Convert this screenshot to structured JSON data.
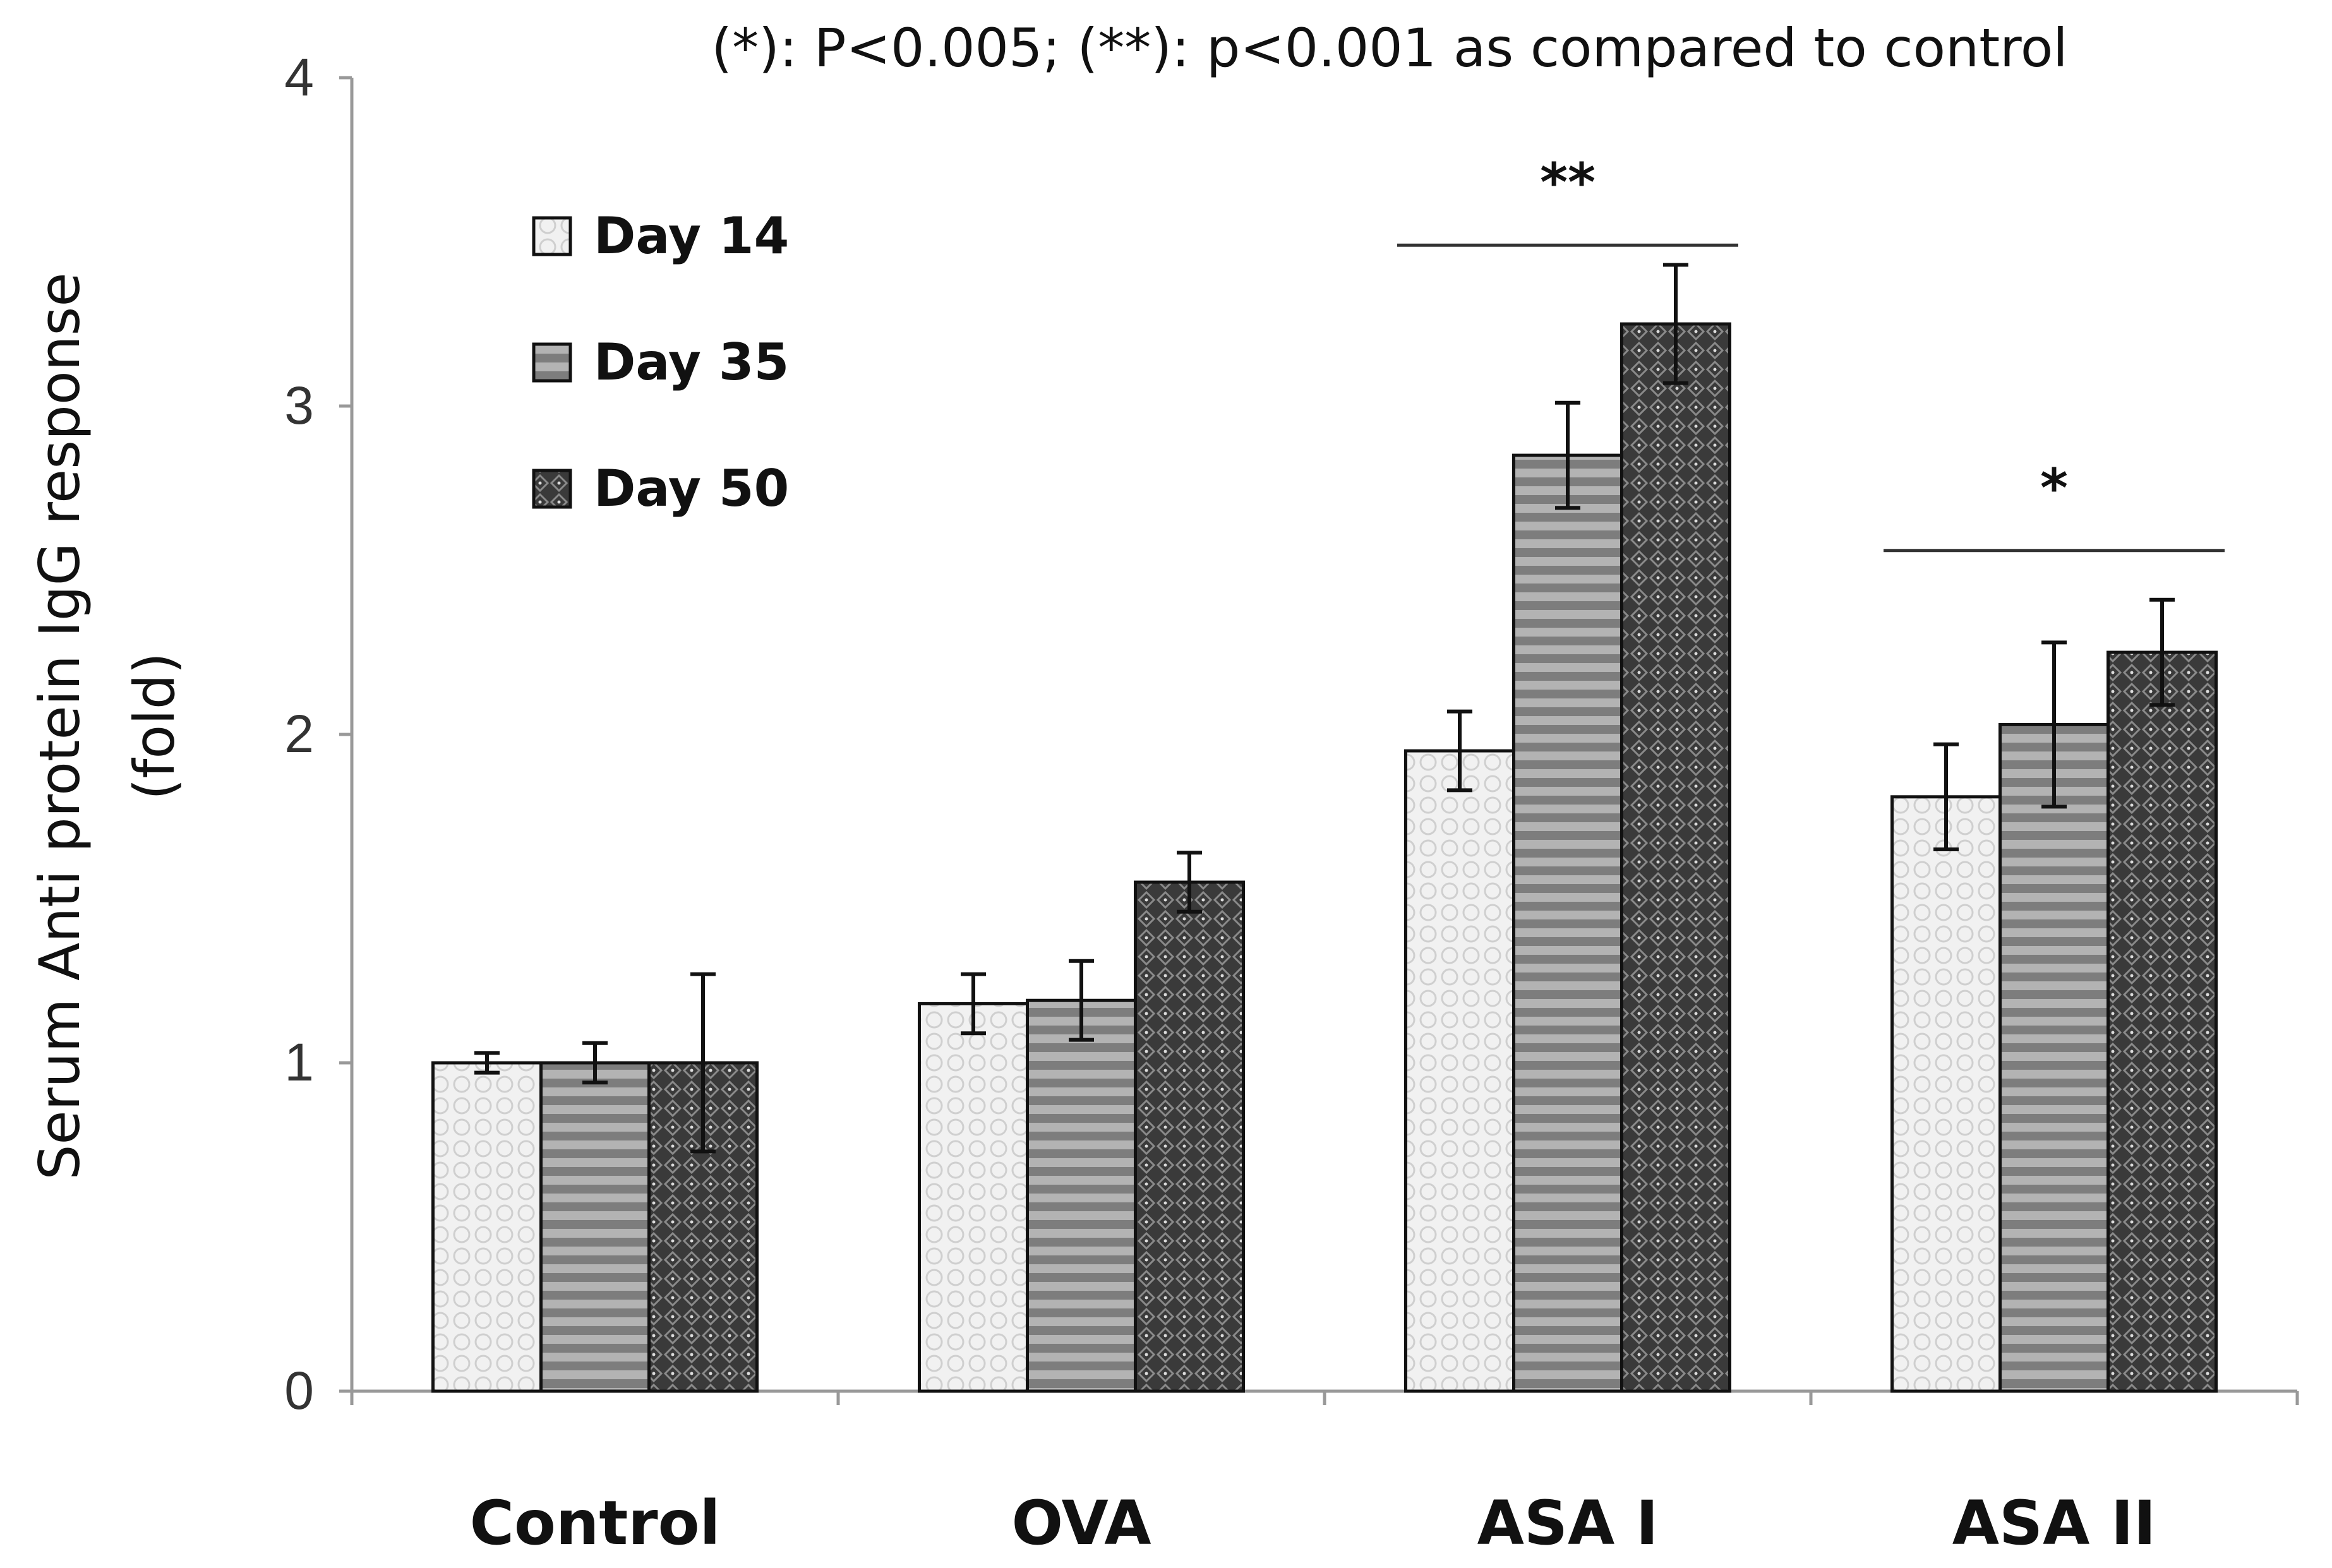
{
  "chart_data": {
    "type": "bar",
    "title": "",
    "annotation": "(*): P<0.005; (**): p<0.001 as compared to control",
    "xlabel": "",
    "ylabel_line1": "Serum Anti protein IgG response",
    "ylabel_line2": "(fold)",
    "ylim": [
      0,
      4
    ],
    "yticks": [
      "0",
      "1",
      "2",
      "3",
      "4"
    ],
    "categories": [
      "Control",
      "OVA",
      "ASA I",
      "ASA II"
    ],
    "legend_position": "top-left",
    "grid": false,
    "series": [
      {
        "name": "Day 14",
        "color": "#ececec",
        "values": [
          1.0,
          1.18,
          1.95,
          1.81
        ],
        "errors": [
          0.03,
          0.09,
          0.12,
          0.16
        ]
      },
      {
        "name": "Day 35",
        "color": "#8f8f8f",
        "values": [
          1.0,
          1.19,
          2.85,
          2.03
        ],
        "errors": [
          0.06,
          0.12,
          0.16,
          0.25
        ]
      },
      {
        "name": "Day 50",
        "color": "#3c3c3c",
        "values": [
          1.0,
          1.55,
          3.25,
          2.25
        ],
        "errors": [
          0.27,
          0.09,
          0.18,
          0.16
        ]
      }
    ],
    "significance": [
      {
        "category_index": 2,
        "label": "**",
        "level": 3.49
      },
      {
        "category_index": 3,
        "label": "*",
        "level": 2.56
      }
    ]
  }
}
